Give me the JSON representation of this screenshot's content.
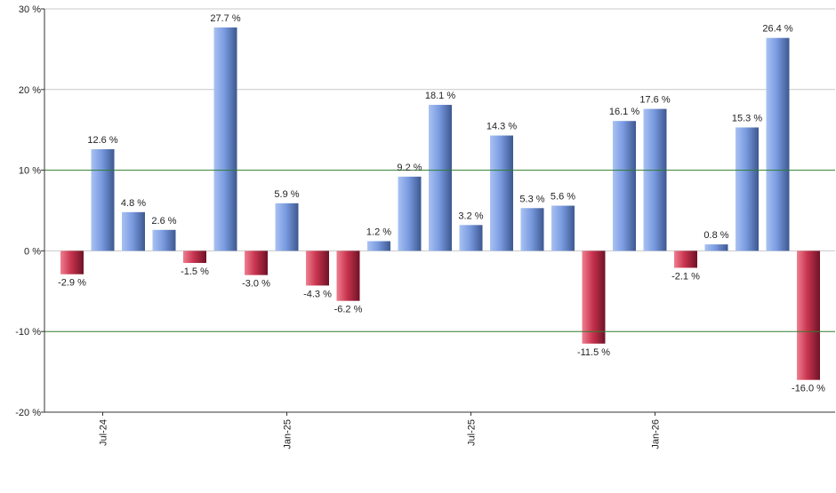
{
  "chart_data": {
    "type": "bar",
    "ylim": [
      -20,
      30
    ],
    "yticks": [
      -20,
      -10,
      0,
      10,
      20,
      30
    ],
    "ytick_labels": [
      "-20 %",
      "-10 %",
      "0 %",
      "10 %",
      "20 %",
      "30 %"
    ],
    "values": [
      -2.9,
      12.6,
      4.8,
      2.6,
      -1.5,
      27.7,
      -3.0,
      5.9,
      -4.3,
      -6.2,
      1.2,
      9.2,
      18.1,
      3.2,
      14.3,
      5.3,
      5.6,
      -11.5,
      16.1,
      17.6,
      -2.1,
      0.8,
      15.3,
      26.4,
      -16.0
    ],
    "value_labels": [
      "-2.9 %",
      "12.6 %",
      "4.8 %",
      "2.6 %",
      "-1.5 %",
      "27.7 %",
      "-3.0 %",
      "5.9 %",
      "-4.3 %",
      "-6.2 %",
      "1.2 %",
      "9.2 %",
      "18.1 %",
      "3.2 %",
      "14.3 %",
      "5.3 %",
      "5.6 %",
      "-11.5 %",
      "16.1 %",
      "17.6 %",
      "-2.1 %",
      "0.8 %",
      "15.3 %",
      "26.4 %",
      "-16.0 %"
    ],
    "xtick_labels": [
      {
        "label": "Jul-24",
        "index": 1
      },
      {
        "label": "Jan-25",
        "index": 7
      },
      {
        "label": "Jul-25",
        "index": 13
      },
      {
        "label": "Jan-26",
        "index": 19
      }
    ],
    "reference_lines": [
      10,
      -10
    ],
    "colors": {
      "positive": "#7a9be0",
      "negative": "#c8344f",
      "grid": "#c8c8c8",
      "reference": "#2f7d2f",
      "axis": "#333333"
    },
    "grid": true,
    "legend": "none"
  }
}
